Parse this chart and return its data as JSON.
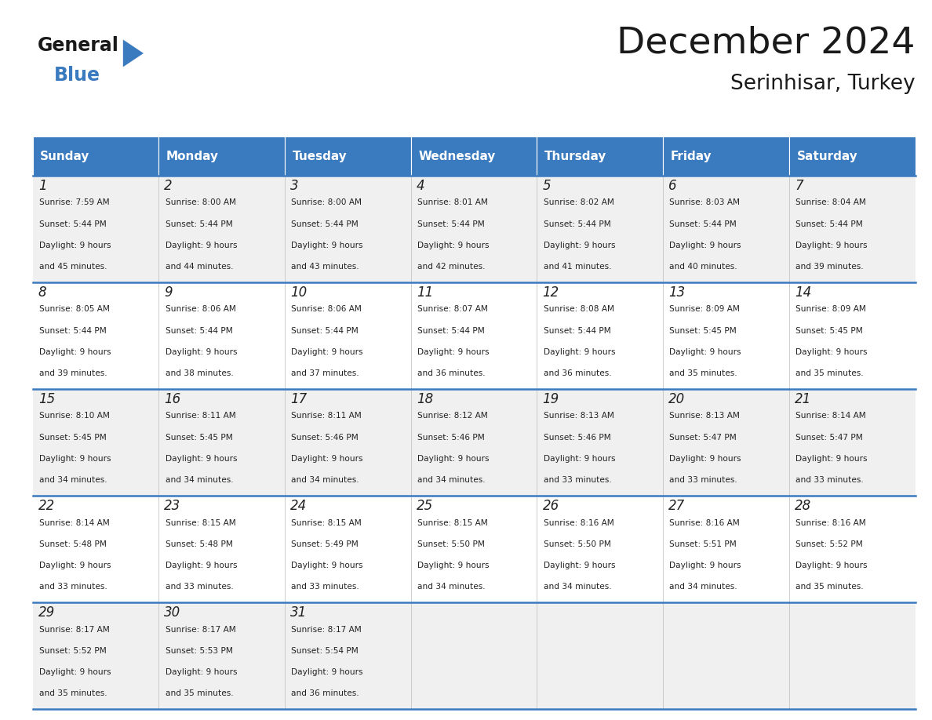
{
  "title": "December 2024",
  "subtitle": "Serinhisar, Turkey",
  "days_of_week": [
    "Sunday",
    "Monday",
    "Tuesday",
    "Wednesday",
    "Thursday",
    "Friday",
    "Saturday"
  ],
  "header_bg": "#3a7abf",
  "header_text": "#ffffff",
  "row_bg_odd": "#f0f0f0",
  "row_bg_even": "#ffffff",
  "separator_color": "#3a7abf",
  "text_color": "#222222",
  "cal_data": [
    [
      {
        "day": 1,
        "sunrise": "7:59 AM",
        "sunset": "5:44 PM",
        "daylight_line1": "9 hours",
        "daylight_line2": "and 45 minutes."
      },
      {
        "day": 2,
        "sunrise": "8:00 AM",
        "sunset": "5:44 PM",
        "daylight_line1": "9 hours",
        "daylight_line2": "and 44 minutes."
      },
      {
        "day": 3,
        "sunrise": "8:00 AM",
        "sunset": "5:44 PM",
        "daylight_line1": "9 hours",
        "daylight_line2": "and 43 minutes."
      },
      {
        "day": 4,
        "sunrise": "8:01 AM",
        "sunset": "5:44 PM",
        "daylight_line1": "9 hours",
        "daylight_line2": "and 42 minutes."
      },
      {
        "day": 5,
        "sunrise": "8:02 AM",
        "sunset": "5:44 PM",
        "daylight_line1": "9 hours",
        "daylight_line2": "and 41 minutes."
      },
      {
        "day": 6,
        "sunrise": "8:03 AM",
        "sunset": "5:44 PM",
        "daylight_line1": "9 hours",
        "daylight_line2": "and 40 minutes."
      },
      {
        "day": 7,
        "sunrise": "8:04 AM",
        "sunset": "5:44 PM",
        "daylight_line1": "9 hours",
        "daylight_line2": "and 39 minutes."
      }
    ],
    [
      {
        "day": 8,
        "sunrise": "8:05 AM",
        "sunset": "5:44 PM",
        "daylight_line1": "9 hours",
        "daylight_line2": "and 39 minutes."
      },
      {
        "day": 9,
        "sunrise": "8:06 AM",
        "sunset": "5:44 PM",
        "daylight_line1": "9 hours",
        "daylight_line2": "and 38 minutes."
      },
      {
        "day": 10,
        "sunrise": "8:06 AM",
        "sunset": "5:44 PM",
        "daylight_line1": "9 hours",
        "daylight_line2": "and 37 minutes."
      },
      {
        "day": 11,
        "sunrise": "8:07 AM",
        "sunset": "5:44 PM",
        "daylight_line1": "9 hours",
        "daylight_line2": "and 36 minutes."
      },
      {
        "day": 12,
        "sunrise": "8:08 AM",
        "sunset": "5:44 PM",
        "daylight_line1": "9 hours",
        "daylight_line2": "and 36 minutes."
      },
      {
        "day": 13,
        "sunrise": "8:09 AM",
        "sunset": "5:45 PM",
        "daylight_line1": "9 hours",
        "daylight_line2": "and 35 minutes."
      },
      {
        "day": 14,
        "sunrise": "8:09 AM",
        "sunset": "5:45 PM",
        "daylight_line1": "9 hours",
        "daylight_line2": "and 35 minutes."
      }
    ],
    [
      {
        "day": 15,
        "sunrise": "8:10 AM",
        "sunset": "5:45 PM",
        "daylight_line1": "9 hours",
        "daylight_line2": "and 34 minutes."
      },
      {
        "day": 16,
        "sunrise": "8:11 AM",
        "sunset": "5:45 PM",
        "daylight_line1": "9 hours",
        "daylight_line2": "and 34 minutes."
      },
      {
        "day": 17,
        "sunrise": "8:11 AM",
        "sunset": "5:46 PM",
        "daylight_line1": "9 hours",
        "daylight_line2": "and 34 minutes."
      },
      {
        "day": 18,
        "sunrise": "8:12 AM",
        "sunset": "5:46 PM",
        "daylight_line1": "9 hours",
        "daylight_line2": "and 34 minutes."
      },
      {
        "day": 19,
        "sunrise": "8:13 AM",
        "sunset": "5:46 PM",
        "daylight_line1": "9 hours",
        "daylight_line2": "and 33 minutes."
      },
      {
        "day": 20,
        "sunrise": "8:13 AM",
        "sunset": "5:47 PM",
        "daylight_line1": "9 hours",
        "daylight_line2": "and 33 minutes."
      },
      {
        "day": 21,
        "sunrise": "8:14 AM",
        "sunset": "5:47 PM",
        "daylight_line1": "9 hours",
        "daylight_line2": "and 33 minutes."
      }
    ],
    [
      {
        "day": 22,
        "sunrise": "8:14 AM",
        "sunset": "5:48 PM",
        "daylight_line1": "9 hours",
        "daylight_line2": "and 33 minutes."
      },
      {
        "day": 23,
        "sunrise": "8:15 AM",
        "sunset": "5:48 PM",
        "daylight_line1": "9 hours",
        "daylight_line2": "and 33 minutes."
      },
      {
        "day": 24,
        "sunrise": "8:15 AM",
        "sunset": "5:49 PM",
        "daylight_line1": "9 hours",
        "daylight_line2": "and 33 minutes."
      },
      {
        "day": 25,
        "sunrise": "8:15 AM",
        "sunset": "5:50 PM",
        "daylight_line1": "9 hours",
        "daylight_line2": "and 34 minutes."
      },
      {
        "day": 26,
        "sunrise": "8:16 AM",
        "sunset": "5:50 PM",
        "daylight_line1": "9 hours",
        "daylight_line2": "and 34 minutes."
      },
      {
        "day": 27,
        "sunrise": "8:16 AM",
        "sunset": "5:51 PM",
        "daylight_line1": "9 hours",
        "daylight_line2": "and 34 minutes."
      },
      {
        "day": 28,
        "sunrise": "8:16 AM",
        "sunset": "5:52 PM",
        "daylight_line1": "9 hours",
        "daylight_line2": "and 35 minutes."
      }
    ],
    [
      {
        "day": 29,
        "sunrise": "8:17 AM",
        "sunset": "5:52 PM",
        "daylight_line1": "9 hours",
        "daylight_line2": "and 35 minutes."
      },
      {
        "day": 30,
        "sunrise": "8:17 AM",
        "sunset": "5:53 PM",
        "daylight_line1": "9 hours",
        "daylight_line2": "and 35 minutes."
      },
      {
        "day": 31,
        "sunrise": "8:17 AM",
        "sunset": "5:54 PM",
        "daylight_line1": "9 hours",
        "daylight_line2": "and 36 minutes."
      },
      null,
      null,
      null,
      null
    ]
  ]
}
